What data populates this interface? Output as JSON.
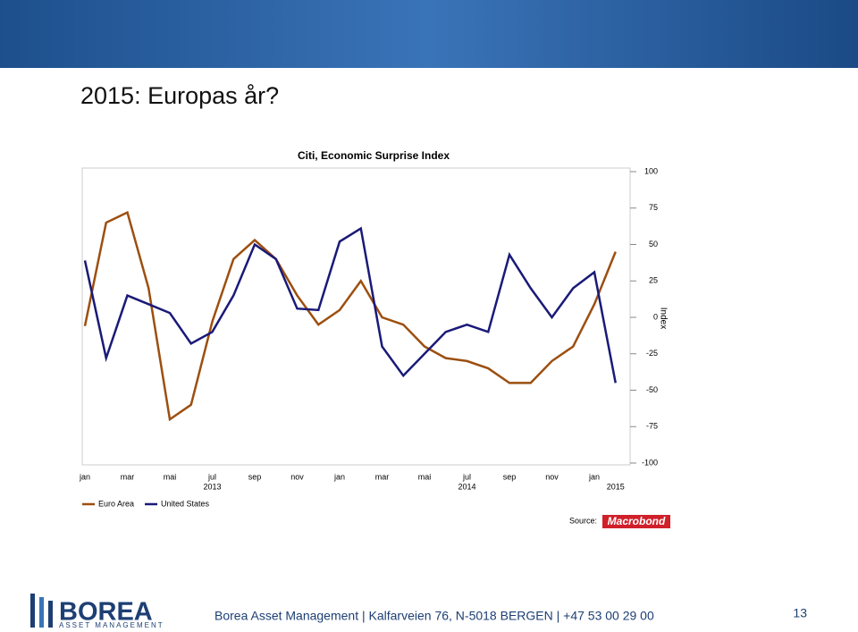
{
  "slide": {
    "title": "2015: Europas år?",
    "footer": "Borea Asset Management | Kalfarveien 76, N-5018 BERGEN | +47 53 00 29 00",
    "page_number": "13",
    "logo": {
      "name": "BOREA",
      "tagline": "ASSET MANAGEMENT"
    },
    "source_label": "Source:",
    "source": "Macrobond"
  },
  "chart_data": {
    "type": "line",
    "title": "Citi, Economic Surprise Index",
    "y_label": "Index",
    "x": [
      "2013-01",
      "2013-02",
      "2013-03",
      "2013-04",
      "2013-05",
      "2013-06",
      "2013-07",
      "2013-08",
      "2013-09",
      "2013-10",
      "2013-11",
      "2013-12",
      "2014-01",
      "2014-02",
      "2014-03",
      "2014-04",
      "2014-05",
      "2014-06",
      "2014-07",
      "2014-08",
      "2014-09",
      "2014-10",
      "2014-11",
      "2014-12",
      "2015-01",
      "2015-02"
    ],
    "xticks": [
      {
        "value": "2013-01",
        "label": "jan"
      },
      {
        "value": "2013-03",
        "label": "mar"
      },
      {
        "value": "2013-05",
        "label": "mai"
      },
      {
        "value": "2013-07",
        "label": "jul"
      },
      {
        "value": "2013-09",
        "label": "sep"
      },
      {
        "value": "2013-11",
        "label": "nov"
      },
      {
        "value": "2014-01",
        "label": "jan"
      },
      {
        "value": "2014-03",
        "label": "mar"
      },
      {
        "value": "2014-05",
        "label": "mai"
      },
      {
        "value": "2014-07",
        "label": "jul"
      },
      {
        "value": "2014-09",
        "label": "sep"
      },
      {
        "value": "2014-11",
        "label": "nov"
      },
      {
        "value": "2015-01",
        "label": "jan"
      }
    ],
    "year_labels": [
      {
        "value": "2013-07",
        "label": "2013"
      },
      {
        "value": "2014-07",
        "label": "2014"
      },
      {
        "value": "2015-02",
        "label": "2015"
      }
    ],
    "ylim": [
      -100,
      100
    ],
    "yticks": [
      100,
      75,
      50,
      25,
      0,
      -25,
      -50,
      -75,
      -100
    ],
    "legend": "bottom-left",
    "series": [
      {
        "name": "Euro Area",
        "color": "#9c4f10",
        "values": [
          -6,
          65,
          72,
          20,
          -70,
          -60,
          -3,
          40,
          53,
          40,
          15,
          -5,
          5,
          25,
          0,
          -5,
          -20,
          -28,
          -30,
          -35,
          -45,
          -45,
          -30,
          -20,
          9,
          45
        ]
      },
      {
        "name": "United States",
        "color": "#1a1a78",
        "values": [
          39,
          -28,
          15,
          9,
          3,
          -18,
          -10,
          15,
          50,
          40,
          6,
          5,
          52,
          61,
          -20,
          -40,
          -25,
          -10,
          -5,
          -10,
          43,
          20,
          0,
          20,
          31,
          -45
        ]
      }
    ]
  }
}
